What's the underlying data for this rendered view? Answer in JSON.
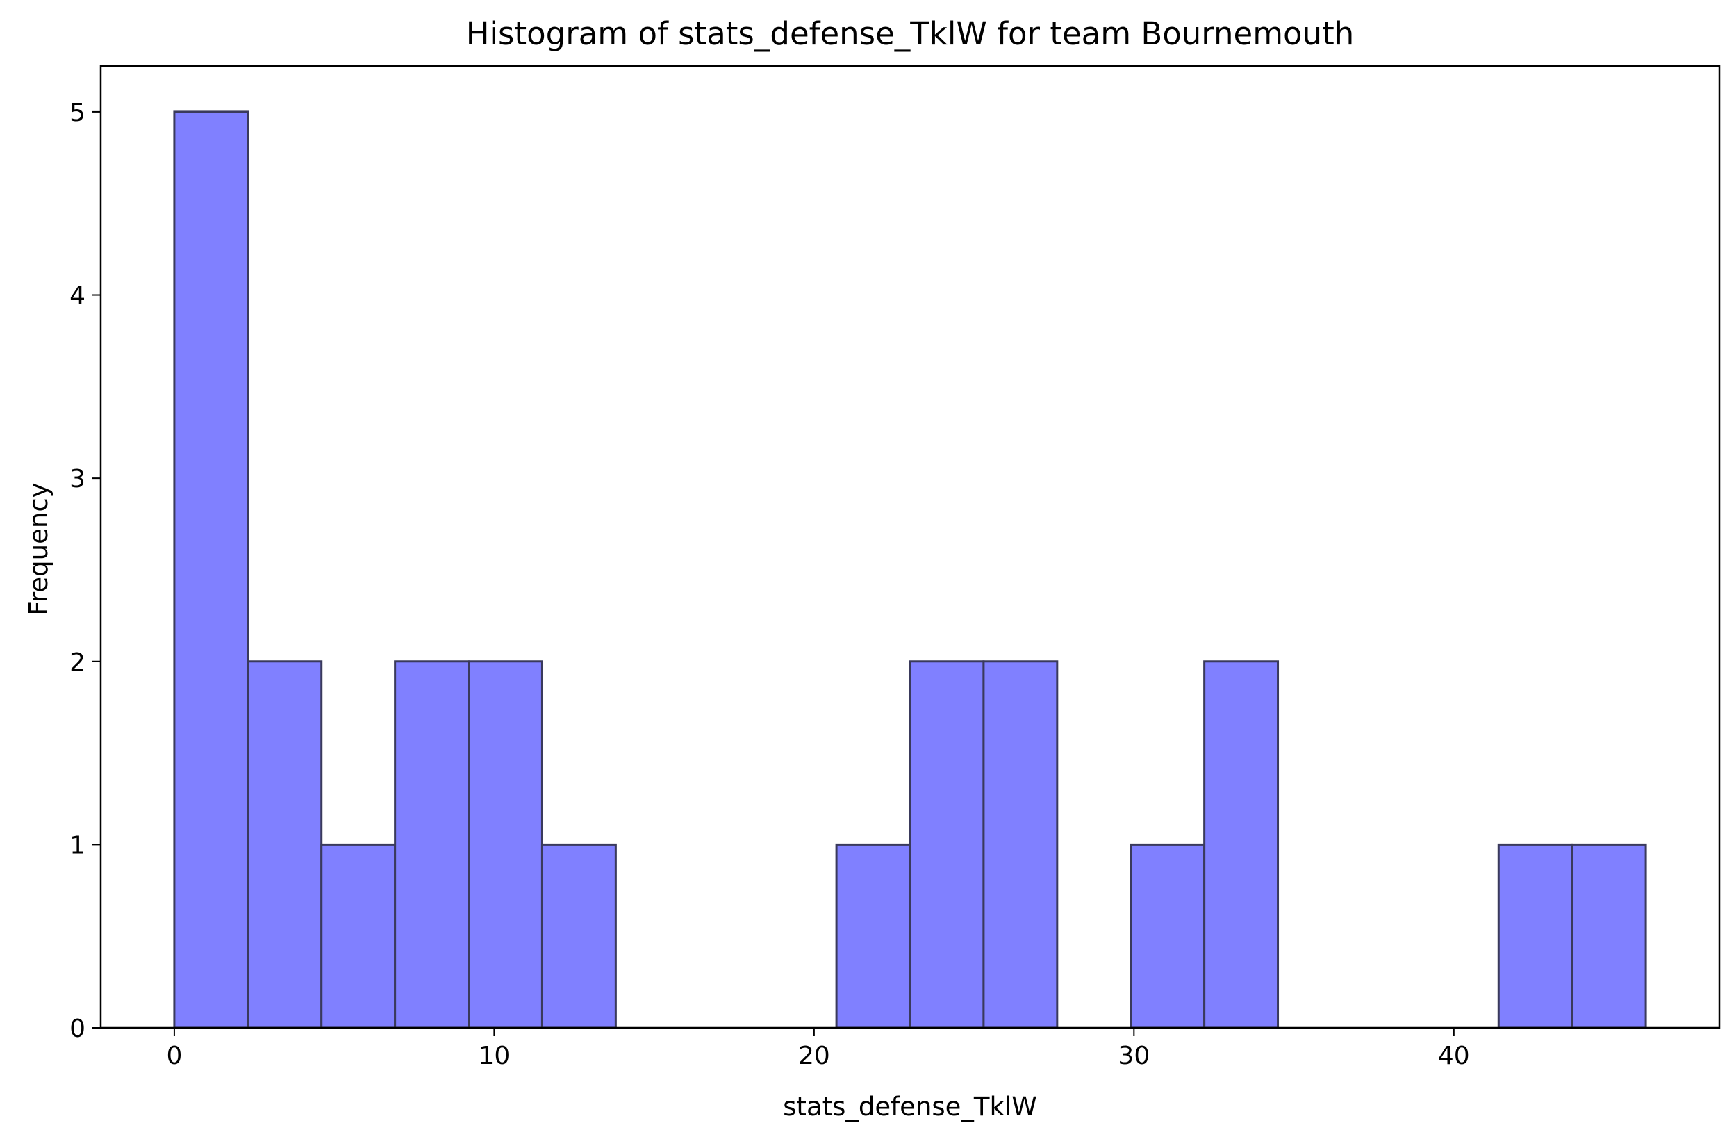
{
  "chart_data": {
    "type": "bar",
    "title": "Histogram of stats_defense_TklW for team Bournemouth",
    "xlabel": "stats_defense_TklW",
    "ylabel": "Frequency",
    "xlim": [
      -2.3,
      48.3
    ],
    "ylim": [
      0,
      5.25
    ],
    "x_ticks": [
      0,
      10,
      20,
      30,
      40
    ],
    "y_ticks": [
      0,
      1,
      2,
      3,
      4,
      5
    ],
    "bin_edges": [
      0,
      2.3,
      4.6,
      6.9,
      9.2,
      11.5,
      13.8,
      16.1,
      18.4,
      20.7,
      23.0,
      25.3,
      27.6,
      29.9,
      32.2,
      34.5,
      36.8,
      39.1,
      41.4,
      43.7,
      46.0
    ],
    "values": [
      5,
      2,
      1,
      2,
      2,
      1,
      0,
      0,
      0,
      1,
      2,
      2,
      0,
      1,
      2,
      0,
      0,
      0,
      1,
      1
    ],
    "bar_color": "#8080ff",
    "edge_color": "#3a3a5c",
    "grid": false
  }
}
